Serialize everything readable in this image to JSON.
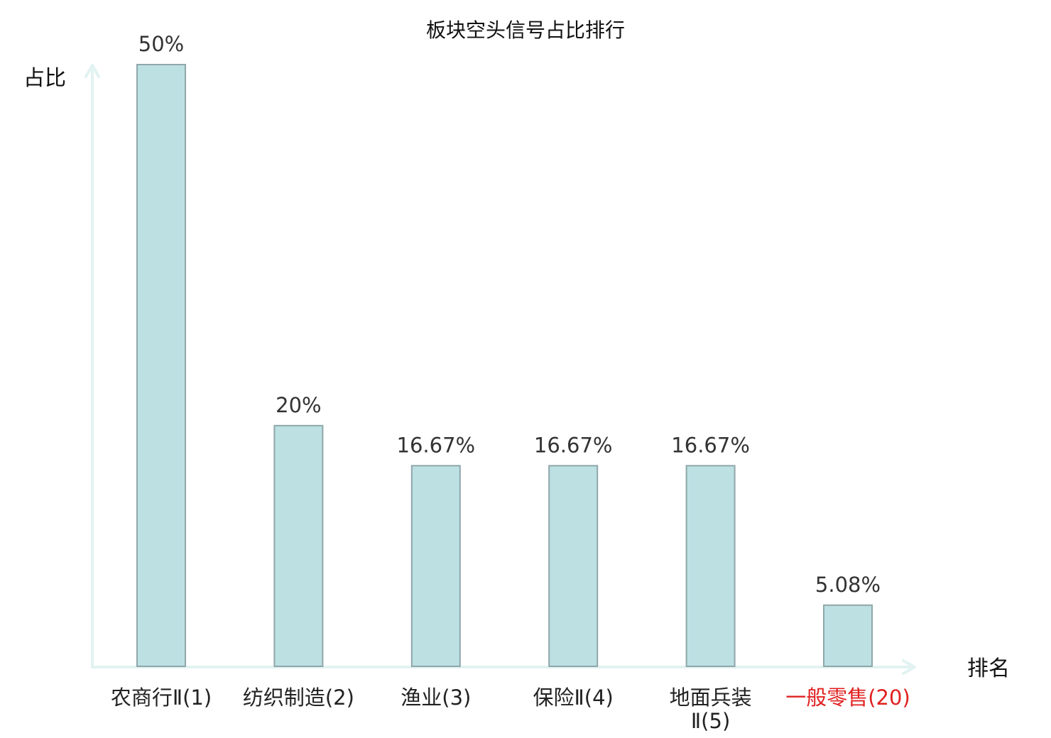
{
  "chart_data": {
    "type": "bar",
    "title": "板块空头信号占比排行",
    "ylabel": "占比",
    "xlabel": "排名",
    "categories": [
      "农商行Ⅱ(1)",
      "纺织制造(2)",
      "渔业(3)",
      "保险Ⅱ(4)",
      "地面兵装Ⅱ(5)",
      "一般零售(20)"
    ],
    "category_lines": [
      [
        "农商行Ⅱ(1)"
      ],
      [
        "纺织制造(2)"
      ],
      [
        "渔业(3)"
      ],
      [
        "保险Ⅱ(4)"
      ],
      [
        "地面兵装",
        "Ⅱ(5)"
      ],
      [
        "一般零售(20)"
      ]
    ],
    "values": [
      50,
      20,
      16.67,
      16.67,
      16.67,
      5.08
    ],
    "value_labels": [
      "50%",
      "20%",
      "16.67%",
      "16.67%",
      "16.67%",
      "5.08%"
    ],
    "highlight_category_index": 5,
    "ylim": [
      0,
      50
    ],
    "grid": false,
    "legend": "none",
    "colors": {
      "bar_fill": "#bde0e3",
      "bar_stroke": "#8fa7aa",
      "axis": "#e2f3f1",
      "category_text": "#222222",
      "highlight_text": "#e02020",
      "value_text": "#333333"
    }
  }
}
